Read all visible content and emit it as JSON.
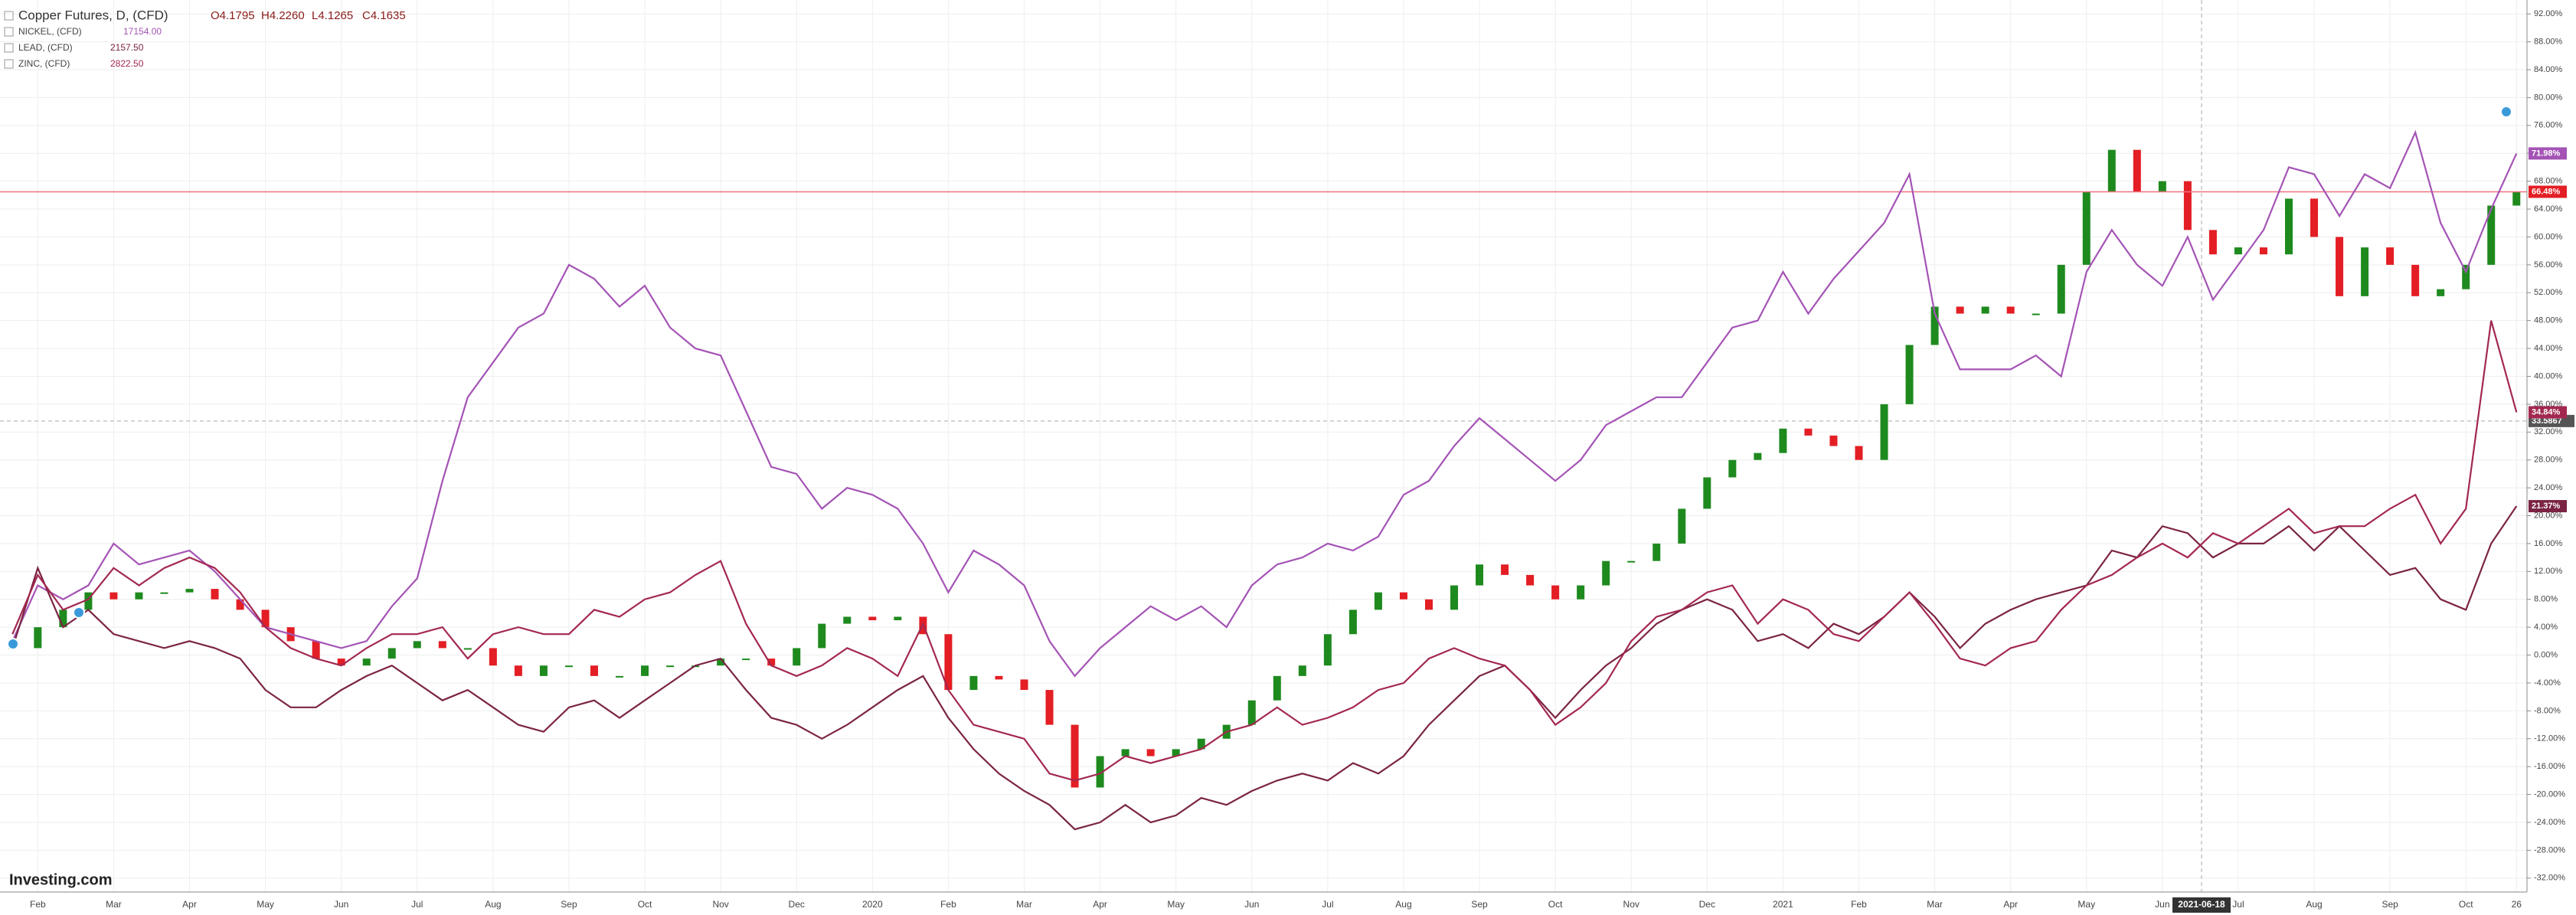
{
  "chart_data": {
    "type": "line",
    "categories": [
      null,
      "Feb",
      null,
      null,
      "Mar",
      null,
      null,
      "Apr",
      null,
      null,
      "May",
      null,
      null,
      "Jun",
      null,
      null,
      "Jul",
      null,
      null,
      "Aug",
      null,
      null,
      "Sep",
      null,
      null,
      "Oct",
      null,
      null,
      "Nov",
      null,
      null,
      "Dec",
      null,
      null,
      "2020",
      null,
      null,
      "Feb",
      null,
      null,
      "Mar",
      null,
      null,
      "Apr",
      null,
      null,
      "May",
      null,
      null,
      "Jun",
      null,
      null,
      "Jul",
      null,
      null,
      "Aug",
      null,
      null,
      "Sep",
      null,
      null,
      "Oct",
      null,
      null,
      "Nov",
      null,
      null,
      "Dec",
      null,
      null,
      "2021",
      null,
      null,
      "Feb",
      null,
      null,
      "Mar",
      null,
      null,
      "Apr",
      null,
      null,
      "May",
      null,
      null,
      "Jun",
      null,
      null,
      "Jul",
      null,
      null,
      "Aug",
      null,
      null,
      "Sep",
      null,
      null,
      "Oct",
      null,
      "26"
    ],
    "series": [
      {
        "name": "Copper Futures, D, (CFD)",
        "style": "candle",
        "color": "#e31e24",
        "up_color": "#1e8a1e",
        "ohlc": [
          "O4.1795",
          "H4.2260",
          "L4.1265",
          "C4.1635"
        ],
        "last_label": "66.48%",
        "values": [
          1,
          4,
          6.5,
          9,
          8,
          9,
          9,
          9.5,
          8,
          6.5,
          4,
          2,
          -0.5,
          -1.5,
          -0.5,
          1,
          2,
          1,
          1,
          -1.5,
          -3,
          -1.5,
          -1.5,
          -3,
          -3,
          -1.5,
          -1.5,
          -1.5,
          -0.5,
          -0.5,
          -1.5,
          1,
          4.5,
          5.5,
          5,
          5.5,
          3,
          -5,
          -3,
          -3.5,
          -5,
          -10,
          -19,
          -14.5,
          -13.5,
          -14.5,
          -13.5,
          -12,
          -10,
          -6.5,
          -3,
          -1.5,
          3,
          6.5,
          9,
          8,
          6.5,
          10,
          13,
          11.5,
          10,
          8,
          10,
          13.5,
          13.5,
          16,
          21,
          25.5,
          28,
          29,
          32.5,
          31.5,
          30,
          28,
          36,
          44.5,
          50,
          49,
          50,
          49,
          49,
          56,
          66.5,
          72.5,
          66.5,
          68,
          61,
          57.5,
          58.5,
          57.5,
          65.5,
          60,
          51.5,
          58.5,
          56,
          51.5,
          52.5,
          56,
          64.5,
          66.48
        ]
      },
      {
        "name": "NICKEL, (CFD)",
        "style": "line",
        "color": "#a453b5",
        "price": "17154.00",
        "last_label": "71.98%",
        "values": [
          2,
          10,
          8,
          10,
          16,
          13,
          14,
          15,
          12,
          8,
          4,
          3,
          2,
          1,
          2,
          7,
          11,
          25,
          37,
          42,
          47,
          49,
          56,
          54,
          50,
          53,
          47,
          44,
          43,
          35,
          27,
          26,
          21,
          24,
          23,
          21,
          16,
          9,
          15,
          13,
          10,
          2,
          -3,
          1,
          4,
          7,
          5,
          7,
          4,
          10,
          13,
          14,
          16,
          15,
          17,
          23,
          25,
          30,
          34,
          31,
          28,
          25,
          28,
          33,
          35,
          37,
          37,
          42,
          47,
          48,
          55,
          49,
          54,
          58,
          62,
          69,
          49,
          41,
          41,
          41,
          43,
          40,
          55,
          61,
          56,
          53,
          60,
          51,
          56,
          61,
          70,
          69,
          63,
          69,
          67,
          75,
          62,
          55,
          64,
          71.98
        ]
      },
      {
        "name": "LEAD, (CFD)",
        "style": "line",
        "color": "#7b2443",
        "price": "2157.50",
        "last_label": "21.37%",
        "values": [
          1,
          12.5,
          4,
          6.5,
          3,
          2,
          1,
          2,
          1,
          -0.5,
          -5,
          -7.5,
          -7.5,
          -5,
          -3,
          -1.5,
          -4,
          -6.5,
          -5,
          -7.5,
          -10,
          -11,
          -7.5,
          -6.5,
          -9,
          -6.5,
          -4,
          -1.5,
          -0.5,
          -5,
          -9,
          -10,
          -12,
          -10,
          -7.5,
          -5,
          -3,
          -9,
          -13.5,
          -17,
          -19.5,
          -21.5,
          -25,
          -24,
          -21.5,
          -24,
          -23,
          -20.5,
          -21.5,
          -19.5,
          -18,
          -17,
          -18,
          -15.5,
          -17,
          -14.5,
          -10,
          -6.5,
          -3,
          -1.5,
          -5,
          -9,
          -5,
          -1.5,
          1,
          4.5,
          6.5,
          8,
          6.5,
          2,
          3,
          1,
          4.5,
          3,
          5.5,
          9,
          5.5,
          1,
          4.5,
          6.5,
          8,
          9,
          10,
          15,
          14,
          18.5,
          17.5,
          14,
          16,
          16,
          18.5,
          15,
          18.5,
          15,
          11.5,
          12.5,
          8,
          6.5,
          16,
          21.37
        ]
      },
      {
        "name": "ZINC, (CFD)",
        "style": "line",
        "color": "#a3284f",
        "price": "2822.50",
        "last_label": "34.84%",
        "values": [
          3,
          11.5,
          6.5,
          8,
          12.5,
          10,
          12.5,
          14,
          12.5,
          9,
          4,
          1,
          -0.5,
          -1.5,
          1,
          3,
          3,
          4,
          -0.5,
          3,
          4,
          3,
          3,
          6.5,
          5.5,
          8,
          9,
          11.5,
          13.5,
          4.5,
          -1.5,
          -3,
          -1.5,
          1,
          -0.5,
          -3,
          4.5,
          -5,
          -10,
          -11,
          -12,
          -17,
          -18,
          -17,
          -14.5,
          -15.5,
          -14.5,
          -13.5,
          -11,
          -10,
          -7.5,
          -10,
          -9,
          -7.5,
          -5,
          -4,
          -0.5,
          1,
          -0.5,
          -1.5,
          -5,
          -10,
          -7.5,
          -4,
          2,
          5.5,
          6.5,
          9,
          10,
          4.5,
          8,
          6.5,
          3,
          2,
          5.5,
          9,
          4.5,
          -0.5,
          -1.5,
          1,
          2,
          6.5,
          10,
          11.5,
          14,
          16,
          14,
          17.5,
          16,
          18.5,
          21,
          17.5,
          18.5,
          18.5,
          21,
          23,
          16,
          21,
          48,
          34.84
        ]
      }
    ],
    "ylim": [
      -34,
      94
    ],
    "yticks": [
      {
        "value": 92,
        "label": "92.00%"
      },
      {
        "value": 88,
        "label": "88.00%"
      },
      {
        "value": 84,
        "label": "84.00%"
      },
      {
        "value": 80,
        "label": "80.00%"
      },
      {
        "value": 76,
        "label": "76.00%"
      },
      {
        "value": 72,
        "label": "72.00%"
      },
      {
        "value": 68,
        "label": "68.00%"
      },
      {
        "value": 64,
        "label": "64.00%"
      },
      {
        "value": 60,
        "label": "60.00%"
      },
      {
        "value": 56,
        "label": "56.00%"
      },
      {
        "value": 52,
        "label": "52.00%"
      },
      {
        "value": 48,
        "label": "48.00%"
      },
      {
        "value": 44,
        "label": "44.00%"
      },
      {
        "value": 40,
        "label": "40.00%"
      },
      {
        "value": 36,
        "label": "36.00%"
      },
      {
        "value": 32,
        "label": "32.00%"
      },
      {
        "value": 28,
        "label": "28.00%"
      },
      {
        "value": 24,
        "label": "24.00%"
      },
      {
        "value": 20,
        "label": "20.00%"
      },
      {
        "value": 16,
        "label": "16.00%"
      },
      {
        "value": 12,
        "label": "12.00%"
      },
      {
        "value": 8,
        "label": "8.00%"
      },
      {
        "value": 4,
        "label": "4.00%"
      },
      {
        "value": 0,
        "label": "0.00%"
      },
      {
        "value": -4,
        "label": "-4.00%"
      },
      {
        "value": -8,
        "label": "-8.00%"
      },
      {
        "value": -12,
        "label": "-12.00%"
      },
      {
        "value": -16,
        "label": "-16.00%"
      },
      {
        "value": -20,
        "label": "-20.00%"
      },
      {
        "value": -24,
        "label": "-24.00%"
      },
      {
        "value": -28,
        "label": "-28.00%"
      },
      {
        "value": -32,
        "label": "-32.00%"
      }
    ],
    "grid": true,
    "crosshair": {
      "value": 33.5867,
      "label": "33.5867",
      "date": "2021-06-18"
    },
    "watermark": "Investing.com"
  }
}
